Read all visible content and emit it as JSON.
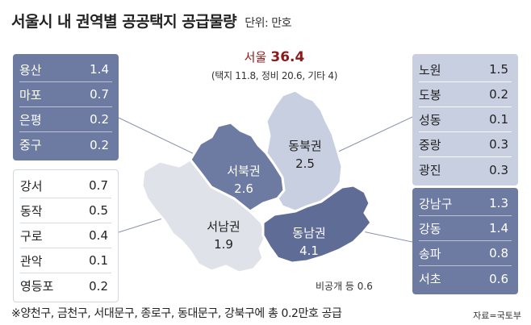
{
  "title": "서울시 내 권역별 공공택지 공급물량",
  "unit": "단위: 만호",
  "total": {
    "label": "서울",
    "value": "36.4",
    "breakdown": "(택지 11.8, 정비 20.6, 기타 4)"
  },
  "regions": {
    "seobuk": {
      "name": "서북권",
      "value": "2.6",
      "color": "#6d7aa2"
    },
    "dongbuk": {
      "name": "동북권",
      "value": "2.5",
      "color": "#c7cfe0"
    },
    "seonam": {
      "name": "서남권",
      "value": "1.9",
      "color": "#dfe2e8"
    },
    "dongnam": {
      "name": "동남권",
      "value": "4.1",
      "color": "#5f6c96"
    }
  },
  "panels": {
    "seobuk": [
      {
        "district": "용산",
        "value": "1.4"
      },
      {
        "district": "마포",
        "value": "0.7"
      },
      {
        "district": "은평",
        "value": "0.2"
      },
      {
        "district": "중구",
        "value": "0.2"
      }
    ],
    "dongbuk": [
      {
        "district": "노원",
        "value": "1.5"
      },
      {
        "district": "도봉",
        "value": "0.2"
      },
      {
        "district": "성동",
        "value": "0.1"
      },
      {
        "district": "중랑",
        "value": "0.3"
      },
      {
        "district": "광진",
        "value": "0.3"
      }
    ],
    "seonam": [
      {
        "district": "강서",
        "value": "0.7"
      },
      {
        "district": "동작",
        "value": "0.5"
      },
      {
        "district": "구로",
        "value": "0.4"
      },
      {
        "district": "관악",
        "value": "0.1"
      },
      {
        "district": "영등포",
        "value": "0.2"
      }
    ],
    "dongnam": [
      {
        "district": "강남구",
        "value": "1.3"
      },
      {
        "district": "강동",
        "value": "1.4"
      },
      {
        "district": "송파",
        "value": "0.8"
      },
      {
        "district": "서초",
        "value": "0.6"
      }
    ]
  },
  "nonpublic": "비공개 등 0.6",
  "footnote": "※양천구, 금천구, 서대문구, 종로구, 동대문구, 강북구에 총 0.2만호 공급",
  "source": "자료=국토부"
}
